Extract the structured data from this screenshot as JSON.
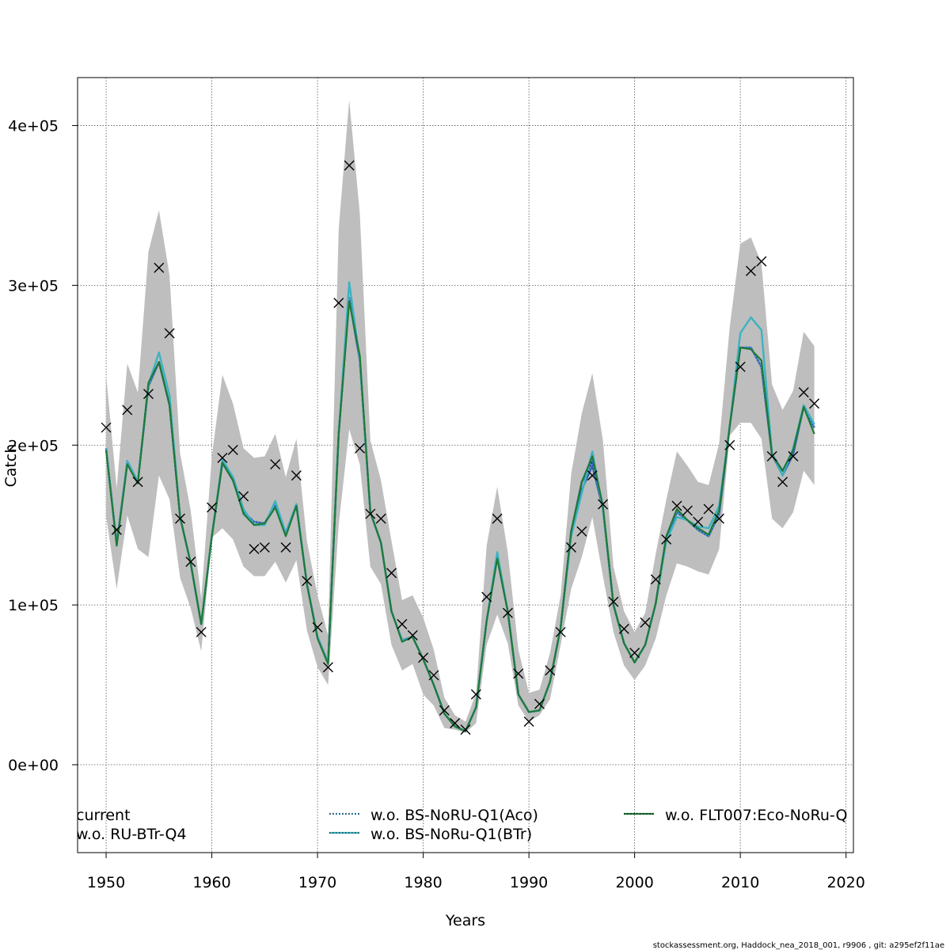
{
  "chart_data": {
    "type": "line",
    "title": "",
    "xlabel": "Years",
    "ylabel": "Catch",
    "xlim": [
      1947.3,
      2020.7
    ],
    "ylim": [
      -55000,
      430000
    ],
    "x_ticks": [
      1950,
      1960,
      1970,
      1980,
      1990,
      2000,
      2010,
      2020
    ],
    "x_tick_labels": [
      "1950",
      "1960",
      "1970",
      "1980",
      "1990",
      "2000",
      "2010",
      "2020"
    ],
    "y_ticks": [
      0,
      100000,
      200000,
      300000,
      400000
    ],
    "y_tick_labels": [
      "0e+00",
      "1e+05",
      "2e+05",
      "3e+05",
      "4e+05"
    ],
    "grid": true,
    "footer": "stockassessment.org, Haddock_nea_2018_001, r9906 , git: a295ef2f11ae",
    "years": [
      1950,
      1951,
      1952,
      1953,
      1954,
      1955,
      1956,
      1957,
      1958,
      1959,
      1960,
      1961,
      1962,
      1963,
      1964,
      1965,
      1966,
      1967,
      1968,
      1969,
      1970,
      1971,
      1972,
      1973,
      1974,
      1975,
      1976,
      1977,
      1978,
      1979,
      1980,
      1981,
      1982,
      1983,
      1984,
      1985,
      1986,
      1987,
      1988,
      1989,
      1990,
      1991,
      1992,
      1993,
      1994,
      1995,
      1996,
      1997,
      1998,
      1999,
      2000,
      2001,
      2002,
      2003,
      2004,
      2005,
      2006,
      2007,
      2008,
      2009,
      2010,
      2011,
      2012,
      2013,
      2014,
      2015,
      2016,
      2017
    ],
    "observed_catch": [
      211000,
      147000,
      222000,
      177000,
      232000,
      311000,
      270000,
      154000,
      127000,
      83000,
      161000,
      192000,
      197000,
      168000,
      135000,
      136000,
      188000,
      136000,
      181000,
      115000,
      86000,
      61000,
      289000,
      375000,
      198000,
      157000,
      154000,
      120000,
      88000,
      81000,
      67000,
      56000,
      34000,
      26000,
      22000,
      44000,
      105000,
      154000,
      95000,
      57000,
      27000,
      38000,
      59000,
      83000,
      136000,
      146000,
      181000,
      163000,
      102000,
      85000,
      70000,
      89000,
      116000,
      141000,
      162000,
      159000,
      152000,
      160000,
      154000,
      200000,
      249000,
      309000,
      315000,
      193000,
      177000,
      193000,
      233000,
      226000
    ],
    "confidence_band": {
      "upper": [
        244000,
        173000,
        251000,
        233000,
        321000,
        347000,
        306000,
        195000,
        159000,
        104000,
        193000,
        244000,
        226000,
        198000,
        192000,
        193000,
        207000,
        180000,
        204000,
        140000,
        106000,
        81000,
        335000,
        416000,
        345000,
        203000,
        178000,
        140000,
        103000,
        106000,
        92000,
        72000,
        42000,
        31000,
        27000,
        45000,
        137000,
        174000,
        133000,
        72000,
        45000,
        47000,
        70000,
        106000,
        182000,
        220000,
        245000,
        203000,
        124000,
        96000,
        83000,
        95000,
        132000,
        166000,
        196000,
        187000,
        177000,
        175000,
        201000,
        274000,
        326000,
        330000,
        314000,
        238000,
        222000,
        234000,
        271000,
        262000
      ],
      "lower": [
        156000,
        110000,
        156000,
        135000,
        130000,
        181000,
        166000,
        117000,
        98000,
        71000,
        142000,
        148000,
        141000,
        124000,
        118000,
        118000,
        127000,
        114000,
        128000,
        84000,
        61000,
        50000,
        150000,
        210000,
        188000,
        124000,
        113000,
        75000,
        59000,
        63000,
        44000,
        37000,
        23000,
        22000,
        20000,
        26000,
        75000,
        94000,
        76000,
        37000,
        27000,
        31000,
        41000,
        75000,
        110000,
        130000,
        155000,
        118000,
        83000,
        62000,
        53000,
        62000,
        79000,
        106000,
        126000,
        124000,
        121000,
        119000,
        135000,
        206000,
        214000,
        214000,
        204000,
        154000,
        148000,
        158000,
        184000,
        175000
      ]
    },
    "series": [
      {
        "name": "current",
        "color": "#21208f",
        "dash": "solid",
        "offsets": [
          0,
          0,
          0,
          0,
          0,
          0,
          0,
          0,
          0,
          0,
          0,
          0,
          0,
          0,
          0,
          0,
          0,
          0,
          0,
          0,
          0,
          0,
          0,
          0,
          0,
          0,
          0,
          0,
          0,
          0,
          0,
          0,
          0,
          0,
          0,
          0,
          0,
          0,
          0,
          0,
          0,
          0,
          0,
          0,
          0,
          0,
          0,
          0,
          0,
          0,
          0,
          0,
          0,
          0,
          0,
          0,
          0,
          0,
          0,
          0,
          0,
          0,
          0,
          0,
          0,
          0,
          0,
          0
        ]
      },
      {
        "name": "w.o. RU-BTr-Q4",
        "color": "#2a5fa8",
        "dash": "solid",
        "offsets": [
          0,
          0,
          0,
          0,
          0,
          0,
          0,
          0,
          0,
          0,
          0,
          0,
          0,
          0,
          0,
          0,
          0,
          0,
          0,
          0,
          0,
          0,
          0,
          0,
          0,
          0,
          0,
          0,
          0,
          0,
          0,
          0,
          0,
          0,
          0,
          0,
          0,
          0,
          0,
          0,
          0,
          0,
          0,
          0,
          -2000,
          -5000,
          -3000,
          0,
          0,
          0,
          0,
          0,
          0,
          0,
          0,
          0,
          0,
          0,
          0,
          0,
          0,
          0,
          0,
          0,
          -3000,
          -2000,
          0,
          0
        ]
      },
      {
        "name": "w.o. BS-NoRU-Q1(Aco)",
        "color": "#4aa8e0",
        "dash": "dotted",
        "offsets": [
          0,
          0,
          0,
          0,
          0,
          0,
          0,
          0,
          0,
          0,
          0,
          0,
          0,
          0,
          0,
          0,
          0,
          0,
          0,
          0,
          0,
          0,
          0,
          0,
          0,
          0,
          0,
          0,
          0,
          0,
          0,
          0,
          0,
          0,
          0,
          0,
          0,
          0,
          0,
          0,
          0,
          0,
          0,
          0,
          0,
          0,
          0,
          0,
          0,
          0,
          0,
          0,
          0,
          0,
          0,
          0,
          0,
          0,
          0,
          0,
          0,
          0,
          0,
          0,
          0,
          0,
          0,
          0
        ]
      },
      {
        "name": "w.o. BS-NoRu-Q1(BTr)",
        "color": "#3bb3c3",
        "dash": "solid",
        "offsets": [
          0,
          0,
          0,
          0,
          0,
          0,
          0,
          0,
          0,
          0,
          0,
          0,
          0,
          0,
          0,
          0,
          0,
          0,
          0,
          0,
          0,
          0,
          0,
          0,
          0,
          0,
          0,
          0,
          0,
          0,
          0,
          0,
          0,
          0,
          0,
          0,
          0,
          0,
          0,
          0,
          0,
          0,
          0,
          0,
          0,
          0,
          0,
          0,
          0,
          0,
          0,
          0,
          0,
          0,
          0,
          0,
          0,
          0,
          0,
          0,
          0,
          0,
          0,
          0,
          0,
          0,
          0,
          0
        ]
      },
      {
        "name": "w.o. FLT007:Eco-NoRu-Q",
        "color": "#1e7a38",
        "dash": "solid",
        "offsets": [
          0,
          0,
          0,
          0,
          0,
          0,
          0,
          0,
          0,
          0,
          0,
          0,
          0,
          0,
          0,
          0,
          0,
          0,
          0,
          0,
          0,
          0,
          0,
          0,
          0,
          0,
          0,
          0,
          0,
          0,
          0,
          0,
          0,
          0,
          0,
          0,
          0,
          0,
          0,
          0,
          0,
          0,
          0,
          0,
          0,
          0,
          0,
          0,
          0,
          0,
          0,
          0,
          0,
          0,
          0,
          0,
          0,
          0,
          0,
          0,
          0,
          0,
          0,
          0,
          0,
          0,
          0,
          0
        ]
      }
    ],
    "base_estimate": [
      198000,
      138000,
      190000,
      177000,
      237000,
      252000,
      225000,
      155000,
      126000,
      88000,
      143000,
      189000,
      178000,
      158000,
      152000,
      151000,
      163000,
      145000,
      163000,
      113000,
      80000,
      64000,
      207000,
      292000,
      253000,
      158000,
      139000,
      96000,
      78000,
      80000,
      66000,
      50000,
      32000,
      24000,
      21000,
      36000,
      90000,
      130000,
      96000,
      44000,
      33000,
      34000,
      52000,
      86000,
      146000,
      177000,
      190000,
      160000,
      100000,
      76000,
      64000,
      75000,
      101000,
      143000,
      158000,
      153000,
      147000,
      143000,
      157000,
      212000,
      261000,
      261000,
      249000,
      194000,
      184000,
      196000,
      224000,
      211000
    ],
    "btr_estimate": [
      198000,
      138000,
      190000,
      177000,
      238000,
      258000,
      231000,
      155000,
      126000,
      88000,
      143000,
      191000,
      180000,
      160000,
      150000,
      150000,
      165000,
      145000,
      163000,
      113000,
      80000,
      64000,
      207000,
      302000,
      253000,
      158000,
      139000,
      96000,
      78000,
      80000,
      66000,
      50000,
      32000,
      24000,
      21000,
      36000,
      90000,
      133000,
      96000,
      44000,
      33000,
      34000,
      52000,
      86000,
      143000,
      170000,
      196000,
      160000,
      100000,
      76000,
      64000,
      75000,
      101000,
      140000,
      155000,
      153000,
      149000,
      148000,
      162000,
      212000,
      270000,
      280000,
      272000,
      195000,
      181000,
      198000,
      225000,
      213000
    ],
    "eco_estimate": [
      197000,
      137000,
      188000,
      176000,
      239000,
      252000,
      225000,
      155000,
      126000,
      88000,
      143000,
      189000,
      178000,
      157000,
      150000,
      151000,
      161000,
      143000,
      162000,
      113000,
      79000,
      63000,
      207000,
      290000,
      256000,
      158000,
      139000,
      96000,
      77000,
      80000,
      66000,
      50000,
      32000,
      24000,
      21000,
      36000,
      90000,
      129000,
      96000,
      44000,
      33000,
      34000,
      52000,
      86000,
      146000,
      177000,
      193000,
      162000,
      100000,
      76000,
      64000,
      75000,
      101000,
      143000,
      160000,
      153000,
      148000,
      144000,
      159000,
      212000,
      261000,
      260000,
      253000,
      194000,
      184000,
      197000,
      224000,
      207000
    ],
    "legend": [
      {
        "label": "current",
        "color": "#21208f"
      },
      {
        "label": "w.o. RU-BTr-Q4",
        "color": "#2a5fa8"
      },
      {
        "label": "w.o. BS-NoRU-Q1(Aco)",
        "color": "#4aa8e0"
      },
      {
        "label": "w.o. BS-NoRu-Q1(BTr)",
        "color": "#3bb3c3"
      },
      {
        "label": "w.o. FLT007:Eco-NoRu-Q",
        "color": "#1e7a38"
      }
    ]
  }
}
